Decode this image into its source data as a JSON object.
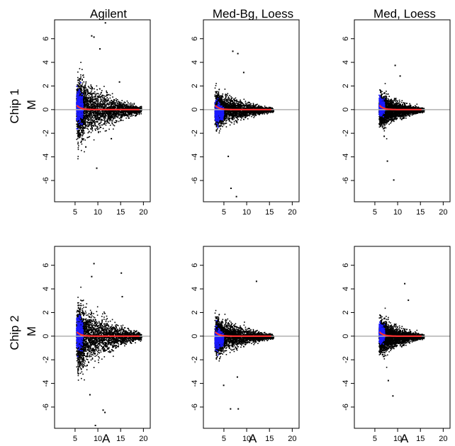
{
  "columns": [
    "Agilent",
    "Med-Bg, Loess",
    "Med, Loess"
  ],
  "rows": [
    "Chip 1",
    "Chip 2"
  ],
  "xlabel": "A",
  "ylabel": "M",
  "colors": {
    "points": "#000000",
    "low_intensity": "#1a1aff",
    "loess": "#ff3030",
    "zero_line": "#b0b0b0"
  },
  "chart_data": [
    {
      "type": "scatter",
      "row": "Chip 1",
      "column": "Agilent",
      "xlabel": "",
      "ylabel": "M",
      "xlim": [
        0.5,
        21.5
      ],
      "ylim": [
        -7.8,
        7.6
      ],
      "xticks": [
        5,
        10,
        15,
        20
      ],
      "yticks": [
        -6,
        -4,
        -2,
        0,
        2,
        4,
        6
      ],
      "point_cloud": {
        "x_range": [
          5.2,
          19.5
        ],
        "m_spread_peak": 2.7,
        "blue_region": [
          5.2,
          6.6
        ]
      },
      "outliers": [
        [
          8.5,
          6.3
        ],
        [
          9.0,
          6.2
        ],
        [
          11.5,
          7.4
        ],
        [
          9.6,
          -4.9
        ],
        [
          7.2,
          -3.1
        ],
        [
          12.8,
          -2.4
        ],
        [
          14.6,
          2.4
        ],
        [
          10.3,
          5.2
        ]
      ]
    },
    {
      "type": "scatter",
      "row": "Chip 1",
      "column": "Med-Bg, Loess",
      "xlabel": "",
      "ylabel": "",
      "xlim": [
        0.5,
        21.5
      ],
      "ylim": [
        -7.8,
        7.6
      ],
      "xticks": [
        5,
        10,
        15,
        20
      ],
      "yticks": [
        -6,
        -4,
        -2,
        0,
        2,
        4,
        6
      ],
      "point_cloud": {
        "x_range": [
          2.9,
          15.8
        ],
        "m_spread_peak": 1.5,
        "blue_region": [
          2.9,
          4.8
        ]
      },
      "outliers": [
        [
          6.8,
          5.0
        ],
        [
          7.9,
          4.8
        ],
        [
          6.4,
          -6.6
        ],
        [
          7.6,
          -7.3
        ],
        [
          5.8,
          -3.9
        ],
        [
          9.2,
          3.2
        ]
      ]
    },
    {
      "type": "scatter",
      "row": "Chip 1",
      "column": "Med, Loess",
      "xlabel": "",
      "ylabel": "",
      "xlim": [
        0.5,
        21.5
      ],
      "ylim": [
        -7.8,
        7.6
      ],
      "xticks": [
        5,
        10,
        15,
        20
      ],
      "yticks": [
        -6,
        -4,
        -2,
        0,
        2,
        4,
        6
      ],
      "point_cloud": {
        "x_range": [
          5.8,
          15.7
        ],
        "m_spread_peak": 1.4,
        "blue_region": [
          5.8,
          7.0
        ]
      },
      "outliers": [
        [
          9.3,
          3.8
        ],
        [
          10.4,
          2.9
        ],
        [
          7.6,
          -4.3
        ],
        [
          9.0,
          -5.9
        ],
        [
          6.9,
          -2.2
        ]
      ]
    },
    {
      "type": "scatter",
      "row": "Chip 2",
      "column": "Agilent",
      "xlabel": "A",
      "ylabel": "M",
      "xlim": [
        0.5,
        21.5
      ],
      "ylim": [
        -7.8,
        7.6
      ],
      "xticks": [
        5,
        10,
        15,
        20
      ],
      "yticks": [
        -6,
        -4,
        -2,
        0,
        2,
        4,
        6
      ],
      "point_cloud": {
        "x_range": [
          5.2,
          19.5
        ],
        "m_spread_peak": 2.8,
        "blue_region": [
          5.2,
          6.6
        ]
      },
      "outliers": [
        [
          9.0,
          6.2
        ],
        [
          15.0,
          5.4
        ],
        [
          8.5,
          5.1
        ],
        [
          11.0,
          -6.2
        ],
        [
          9.3,
          -7.5
        ],
        [
          8.1,
          -4.9
        ],
        [
          11.4,
          -6.4
        ],
        [
          15.2,
          3.4
        ]
      ]
    },
    {
      "type": "scatter",
      "row": "Chip 2",
      "column": "Med-Bg, Loess",
      "xlabel": "A",
      "ylabel": "",
      "xlim": [
        0.5,
        21.5
      ],
      "ylim": [
        -7.8,
        7.6
      ],
      "xticks": [
        5,
        10,
        15,
        20
      ],
      "yticks": [
        -6,
        -4,
        -2,
        0,
        2,
        4,
        6
      ],
      "point_cloud": {
        "x_range": [
          2.9,
          15.8
        ],
        "m_spread_peak": 1.6,
        "blue_region": [
          2.9,
          4.8
        ]
      },
      "outliers": [
        [
          12.0,
          4.7
        ],
        [
          6.3,
          -6.1
        ],
        [
          8.0,
          -6.1
        ],
        [
          4.8,
          -4.1
        ],
        [
          7.8,
          -3.4
        ]
      ]
    },
    {
      "type": "scatter",
      "row": "Chip 2",
      "column": "Med, Loess",
      "xlabel": "A",
      "ylabel": "",
      "xlim": [
        0.5,
        21.5
      ],
      "ylim": [
        -7.8,
        7.6
      ],
      "xticks": [
        5,
        10,
        15,
        20
      ],
      "yticks": [
        -6,
        -4,
        -2,
        0,
        2,
        4,
        6
      ],
      "point_cloud": {
        "x_range": [
          5.8,
          15.7
        ],
        "m_spread_peak": 1.5,
        "blue_region": [
          5.8,
          7.0
        ]
      },
      "outliers": [
        [
          11.4,
          4.5
        ],
        [
          12.2,
          3.1
        ],
        [
          7.8,
          -3.7
        ],
        [
          8.8,
          -5.0
        ]
      ]
    }
  ]
}
